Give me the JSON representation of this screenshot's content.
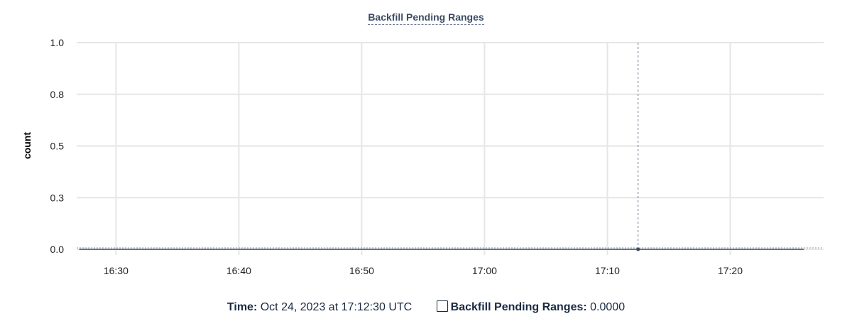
{
  "chart_data": {
    "type": "line",
    "title": "Backfill Pending Ranges",
    "ylabel": "count",
    "xlabel": "",
    "ylim": [
      0,
      1
    ],
    "yticks": [
      0.0,
      0.25,
      0.5,
      0.75,
      1.0
    ],
    "ytick_labels": [
      "0.0",
      "0.3",
      "0.5",
      "0.8",
      "1.0"
    ],
    "xlim": [
      "16:26:48",
      "17:27:36"
    ],
    "xtick_labels": [
      "16:30",
      "16:40",
      "16:50",
      "17:00",
      "17:10",
      "17:20"
    ],
    "grid": true,
    "series": [
      {
        "name": "Backfill Pending Ranges",
        "color": "#3d4b63",
        "x": [
          "16:27:00",
          "17:12:30",
          "17:26:00"
        ],
        "y": [
          0,
          0,
          0
        ]
      }
    ],
    "hover": {
      "time": "17:12:30",
      "value": 0
    }
  },
  "legend": {
    "time_label": "Time:",
    "time_value": "Oct 24, 2023 at 17:12:30 UTC",
    "series_label": "Backfill Pending Ranges:",
    "series_value": "0.0000"
  }
}
